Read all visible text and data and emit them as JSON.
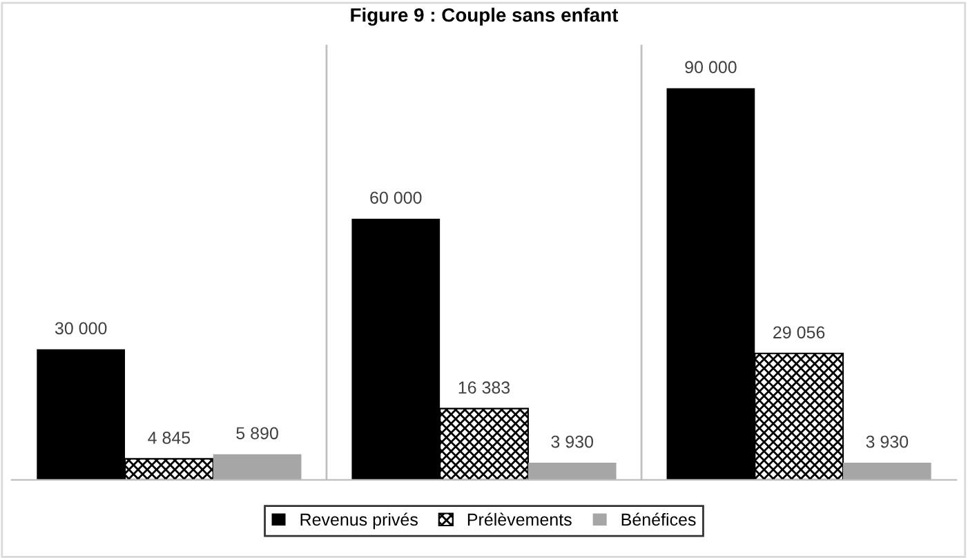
{
  "chart_data": {
    "type": "bar",
    "title": "Figure 9 : Couple sans enfant",
    "categories": [
      null,
      null,
      null
    ],
    "series": [
      {
        "name": "Revenus privés",
        "color": "#000000",
        "values": [
          30000,
          60000,
          90000
        ],
        "value_labels": [
          "30 000",
          "60 000",
          "90 000"
        ]
      },
      {
        "name": "Prélèvements",
        "color": "#000000",
        "values": [
          4845,
          16383,
          29056
        ],
        "value_labels": [
          "4 845",
          "16 383",
          "29 056"
        ]
      },
      {
        "name": "Bénéfices",
        "color": "#a6a6a6",
        "values": [
          5890,
          3930,
          3930
        ],
        "value_labels": [
          "5 890",
          "3 930",
          "3 930"
        ]
      }
    ],
    "ylim": [
      0,
      100000
    ],
    "grid": "x",
    "legend": "bottom"
  }
}
